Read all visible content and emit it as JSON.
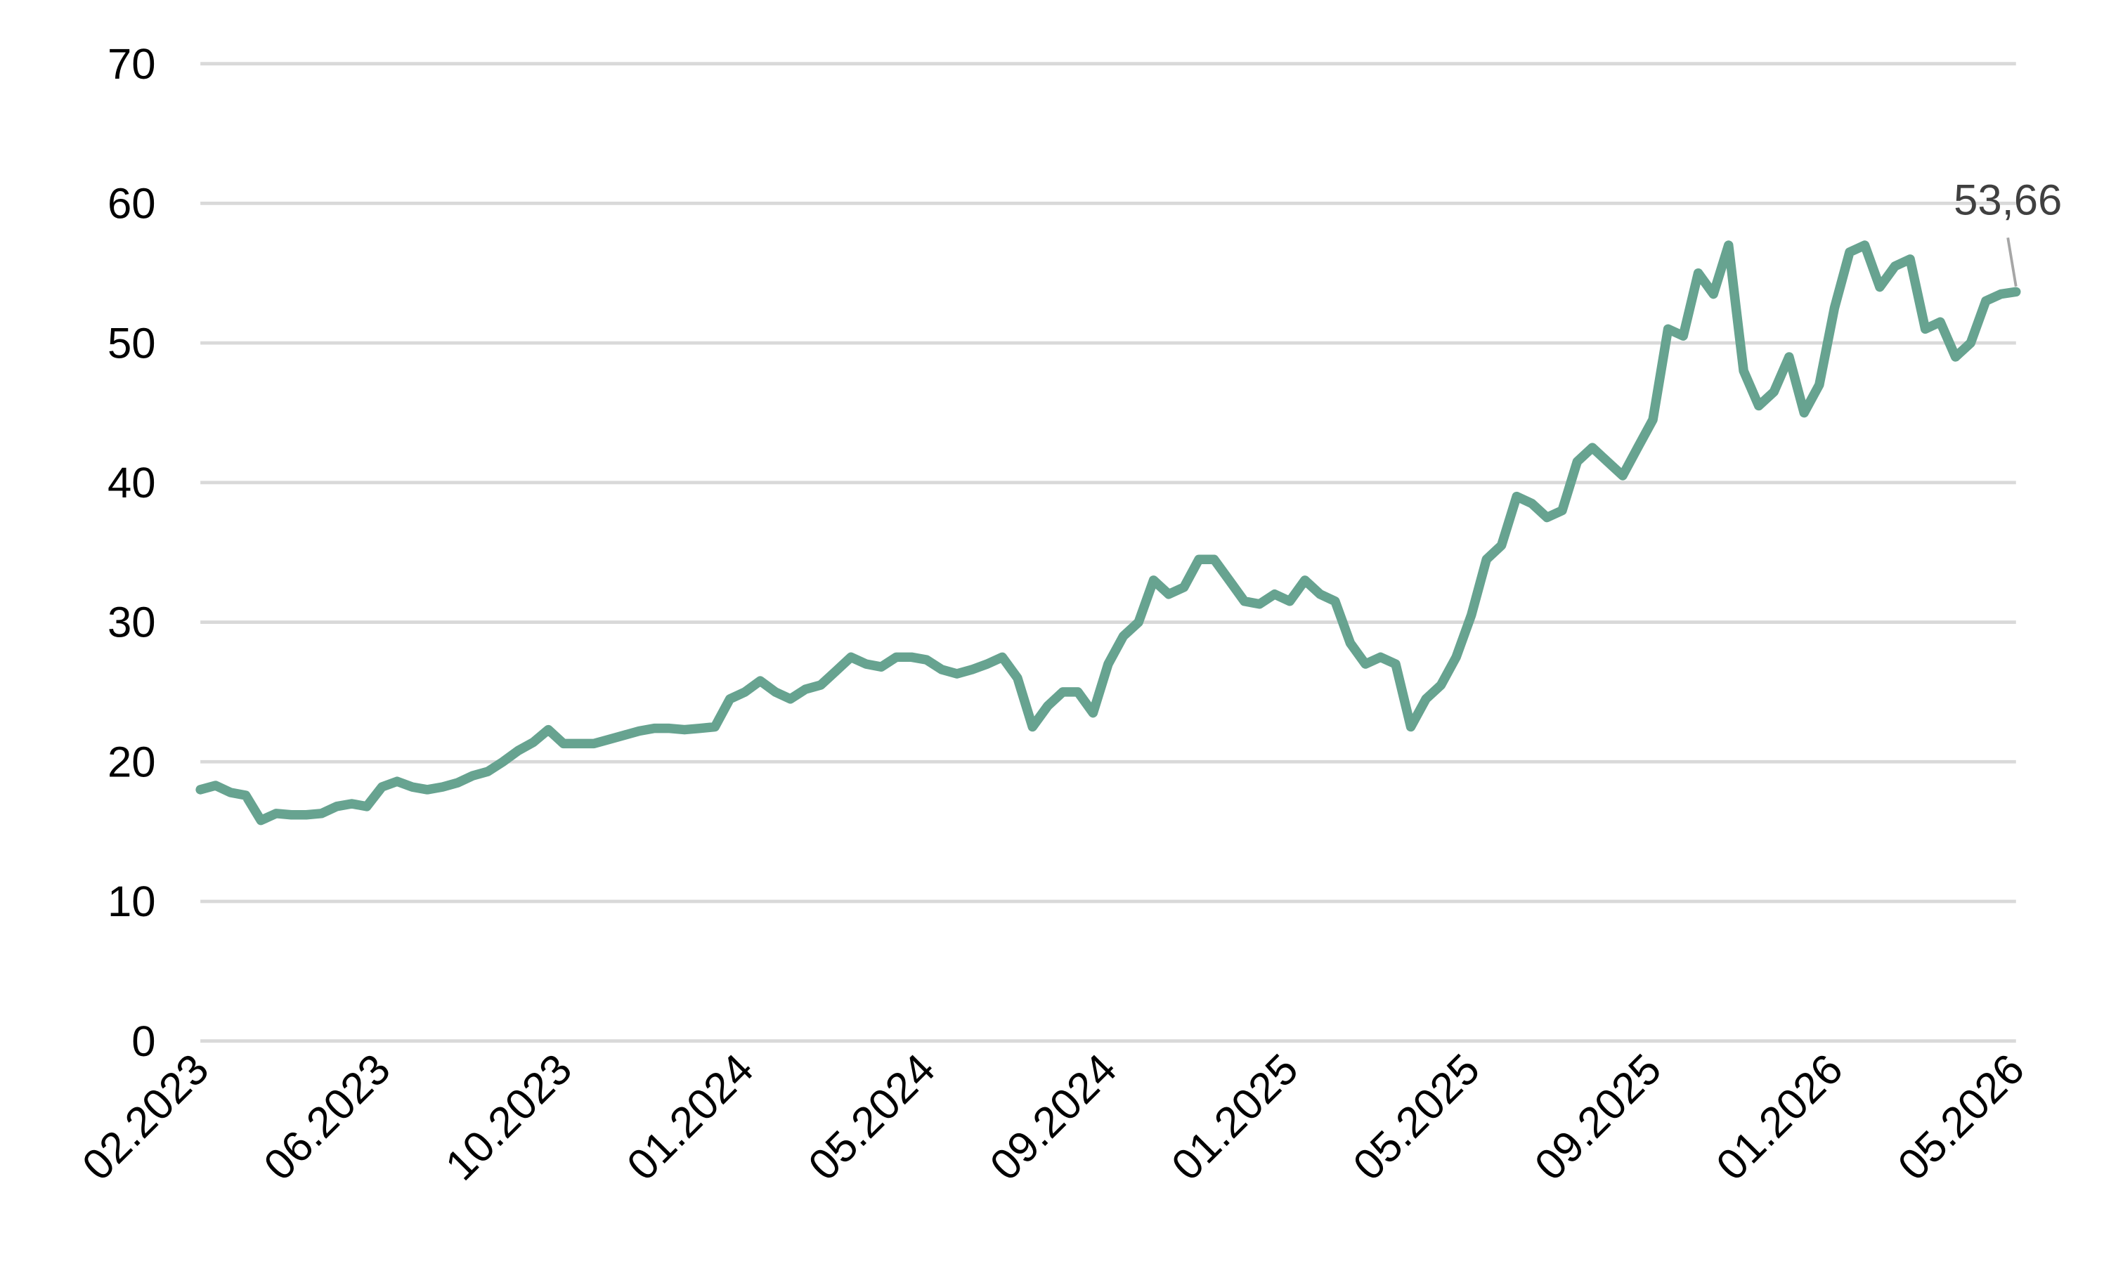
{
  "chart_data": {
    "type": "line",
    "categories": [
      "02.2023",
      null,
      null,
      null,
      null,
      null,
      null,
      null,
      null,
      null,
      null,
      null,
      "06.2023",
      null,
      null,
      null,
      null,
      null,
      null,
      null,
      null,
      null,
      null,
      null,
      "10.2023",
      null,
      null,
      null,
      null,
      null,
      null,
      null,
      null,
      null,
      null,
      null,
      "01.2024",
      null,
      null,
      null,
      null,
      null,
      null,
      null,
      null,
      null,
      null,
      null,
      "05.2024",
      null,
      null,
      null,
      null,
      null,
      null,
      null,
      null,
      null,
      null,
      null,
      "09.2024",
      null,
      null,
      null,
      null,
      null,
      null,
      null,
      null,
      null,
      null,
      null,
      "01.2025",
      null,
      null,
      null,
      null,
      null,
      null,
      null,
      null,
      null,
      null,
      null,
      "05.2025",
      null,
      null,
      null,
      null,
      null,
      null,
      null,
      null,
      null,
      null,
      null,
      "09.2025",
      null,
      null,
      null,
      null,
      null,
      null,
      null,
      null,
      null,
      null,
      null,
      "01.2026",
      null,
      null,
      null,
      null,
      null,
      null,
      null,
      null,
      null,
      null,
      null,
      "05.2026"
    ],
    "values": [
      18,
      18.3,
      17.8,
      17.6,
      15.8,
      16.3,
      16.2,
      16.2,
      16.3,
      16.8,
      17,
      16.8,
      18.2,
      18.6,
      18.2,
      18,
      18.2,
      18.5,
      19,
      19.3,
      20,
      20.8,
      21.4,
      22.3,
      21.3,
      21.3,
      21.3,
      21.6,
      21.9,
      22.2,
      22.4,
      22.4,
      22.3,
      22.4,
      22.5,
      24.5,
      25,
      25.8,
      25,
      24.5,
      25.2,
      25.5,
      26.5,
      27.5,
      27,
      26.8,
      27.5,
      27.5,
      27.3,
      26.6,
      26.3,
      26.6,
      27,
      27.5,
      26,
      22.5,
      24,
      25,
      25,
      23.5,
      27,
      29,
      30,
      33,
      32,
      32.5,
      34.5,
      34.5,
      33,
      31.5,
      31.3,
      32,
      31.5,
      33,
      32,
      31.5,
      28.5,
      27,
      27.5,
      27,
      22.5,
      24.5,
      25.5,
      27.5,
      30.5,
      34.5,
      35.5,
      39,
      38.5,
      37.5,
      38,
      41.5,
      42.5,
      41.5,
      40.5,
      42.5,
      44.5,
      51,
      50.5,
      55,
      53.5,
      57,
      48,
      45.5,
      46.5,
      49,
      45,
      47,
      52.5,
      56.5,
      57,
      54,
      55.5,
      56,
      51,
      51.5,
      49,
      50,
      53,
      53.5,
      53.66
    ],
    "value_labels": [
      null,
      null,
      null,
      null,
      null,
      null,
      null,
      null,
      null,
      null,
      null,
      null,
      null,
      null,
      null,
      null,
      null,
      null,
      null,
      null,
      null,
      null,
      null,
      null,
      null,
      null,
      null,
      null,
      null,
      null,
      null,
      null,
      null,
      null,
      null,
      null,
      null,
      null,
      null,
      null,
      null,
      null,
      null,
      null,
      null,
      null,
      null,
      null,
      null,
      null,
      null,
      null,
      null,
      null,
      null,
      null,
      null,
      null,
      null,
      null,
      null,
      null,
      null,
      null,
      null,
      null,
      null,
      null,
      null,
      null,
      null,
      null,
      null,
      null,
      null,
      null,
      null,
      null,
      null,
      null,
      null,
      null,
      null,
      null,
      null,
      null,
      null,
      null,
      null,
      null,
      null,
      null,
      null,
      null,
      null,
      null,
      null,
      null,
      null,
      null,
      null,
      null,
      null,
      null,
      null,
      null,
      null,
      null,
      null,
      null,
      null,
      null,
      null,
      null,
      null,
      null,
      null,
      null,
      null,
      null,
      "53,66"
    ],
    "color": "#67a390",
    "ylim": [
      0,
      70
    ],
    "yticks": [
      0,
      10,
      20,
      30,
      40,
      50,
      60,
      70
    ],
    "grid": true
  }
}
